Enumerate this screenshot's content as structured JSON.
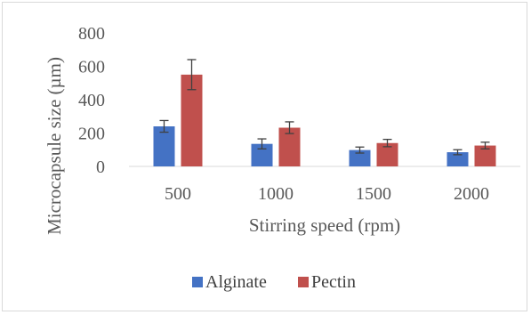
{
  "chart_data": {
    "type": "bar",
    "categories": [
      "500",
      "1000",
      "1500",
      "2000"
    ],
    "series": [
      {
        "name": "Alginate",
        "color": "#4472C4",
        "values": [
          240,
          135,
          98,
          85
        ],
        "errors": [
          35,
          30,
          18,
          15
        ]
      },
      {
        "name": "Pectin",
        "color": "#C0504D",
        "values": [
          550,
          232,
          140,
          125
        ],
        "errors": [
          90,
          35,
          22,
          20
        ]
      }
    ],
    "title": "",
    "xlabel": "Stirring speed (rpm)",
    "ylabel": "Microcapsule size (µm)",
    "ylim": [
      0,
      800
    ],
    "yticks": [
      "0",
      "200",
      "400",
      "600",
      "800"
    ],
    "grid": false,
    "legend_position": "bottom"
  }
}
